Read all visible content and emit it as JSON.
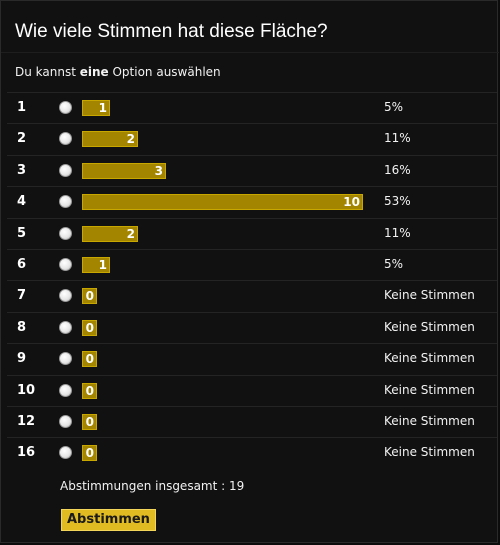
{
  "poll": {
    "title": "Wie viele Stimmen hat diese Fläche?",
    "instruction_prefix": "Du kannst ",
    "instruction_bold": "eine",
    "instruction_suffix": " Option auswählen",
    "options": [
      {
        "label": "1",
        "votes": 1,
        "votes_text": "1",
        "result": "5%"
      },
      {
        "label": "2",
        "votes": 2,
        "votes_text": "2",
        "result": "11%"
      },
      {
        "label": "3",
        "votes": 3,
        "votes_text": "3",
        "result": "16%"
      },
      {
        "label": "4",
        "votes": 10,
        "votes_text": "10",
        "result": "53%"
      },
      {
        "label": "5",
        "votes": 2,
        "votes_text": "2",
        "result": "11%"
      },
      {
        "label": "6",
        "votes": 1,
        "votes_text": "1",
        "result": "5%"
      },
      {
        "label": "7",
        "votes": 0,
        "votes_text": "0",
        "result": "Keine Stimmen"
      },
      {
        "label": "8",
        "votes": 0,
        "votes_text": "0",
        "result": "Keine Stimmen"
      },
      {
        "label": "9",
        "votes": 0,
        "votes_text": "0",
        "result": "Keine Stimmen"
      },
      {
        "label": "10",
        "votes": 0,
        "votes_text": "0",
        "result": "Keine Stimmen"
      },
      {
        "label": "12",
        "votes": 0,
        "votes_text": "0",
        "result": "Keine Stimmen"
      },
      {
        "label": "16",
        "votes": 0,
        "votes_text": "0",
        "result": "Keine Stimmen"
      }
    ],
    "total_text": "Abstimmungen insgesamt : 19",
    "submit_label": "Abstimmen"
  },
  "colors": {
    "bar_fill": "#a38500",
    "bar_border": "#c8a700",
    "button_bg": "#e0bb22"
  }
}
